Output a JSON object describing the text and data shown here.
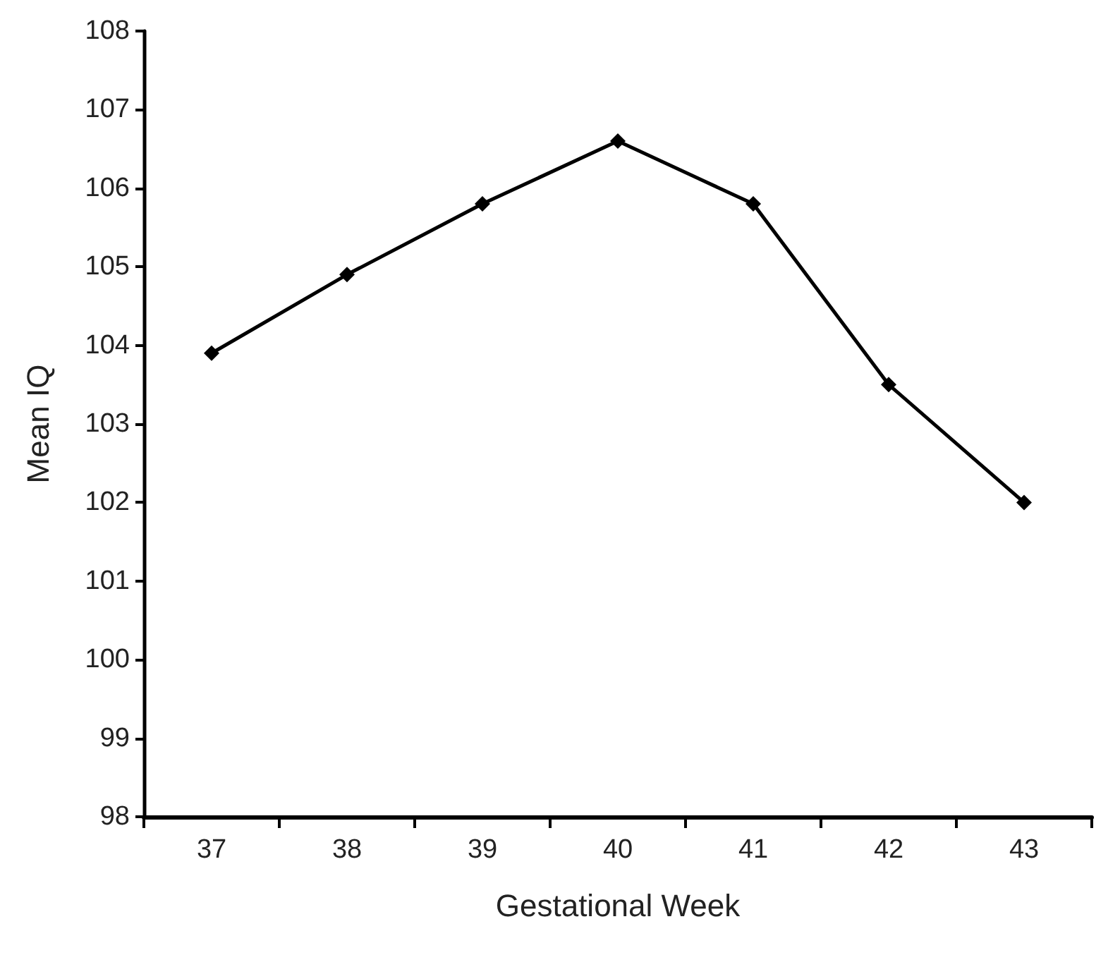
{
  "chart_data": {
    "type": "line",
    "xlabel": "Gestational Week",
    "ylabel": "Mean IQ",
    "categories": [
      "37",
      "38",
      "39",
      "40",
      "41",
      "42",
      "43"
    ],
    "series": [
      {
        "color": "#000000",
        "values": [
          103.9,
          104.9,
          105.8,
          106.6,
          105.8,
          103.5,
          102.0
        ]
      }
    ],
    "ylim": [
      98,
      108
    ],
    "yticks": [
      98,
      99,
      100,
      101,
      102,
      103,
      104,
      105,
      106,
      107,
      108
    ],
    "grid": false,
    "marker": "diamond",
    "line_style": "solid"
  }
}
